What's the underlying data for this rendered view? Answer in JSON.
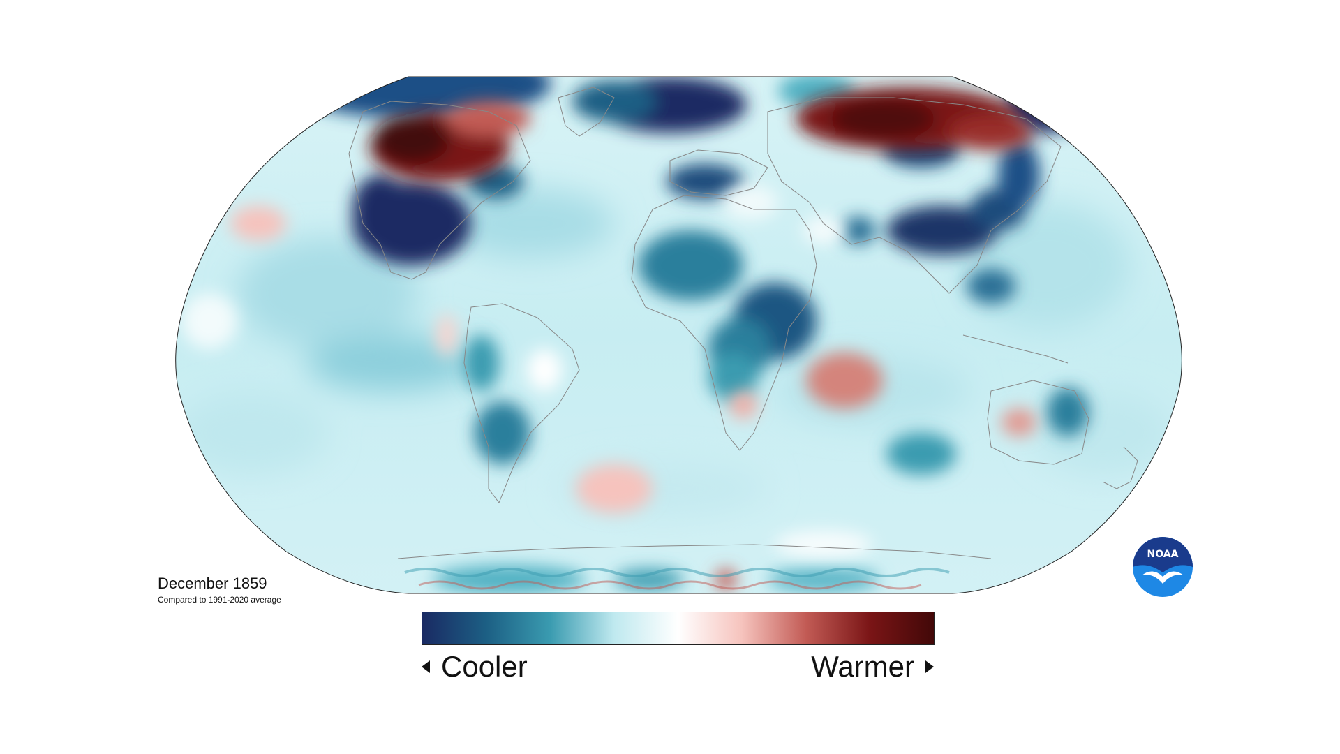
{
  "map": {
    "projection": "robinson",
    "subject": "global temperature anomaly"
  },
  "caption": {
    "title": "December 1859",
    "subtitle": "Compared to 1991-2020 average"
  },
  "legend": {
    "cooler_label": "Cooler",
    "warmer_label": "Warmer",
    "colors": [
      "#1a2a63",
      "#1c5f84",
      "#3a9bb0",
      "#bfe9ef",
      "#ffffff",
      "#f6c3bd",
      "#c25b55",
      "#7a1516",
      "#420808"
    ]
  },
  "logo": {
    "text": "NOAA",
    "icon": "noaa-logo",
    "colors": [
      "#1a3b8c",
      "#1e88e5",
      "#ffffff"
    ]
  }
}
